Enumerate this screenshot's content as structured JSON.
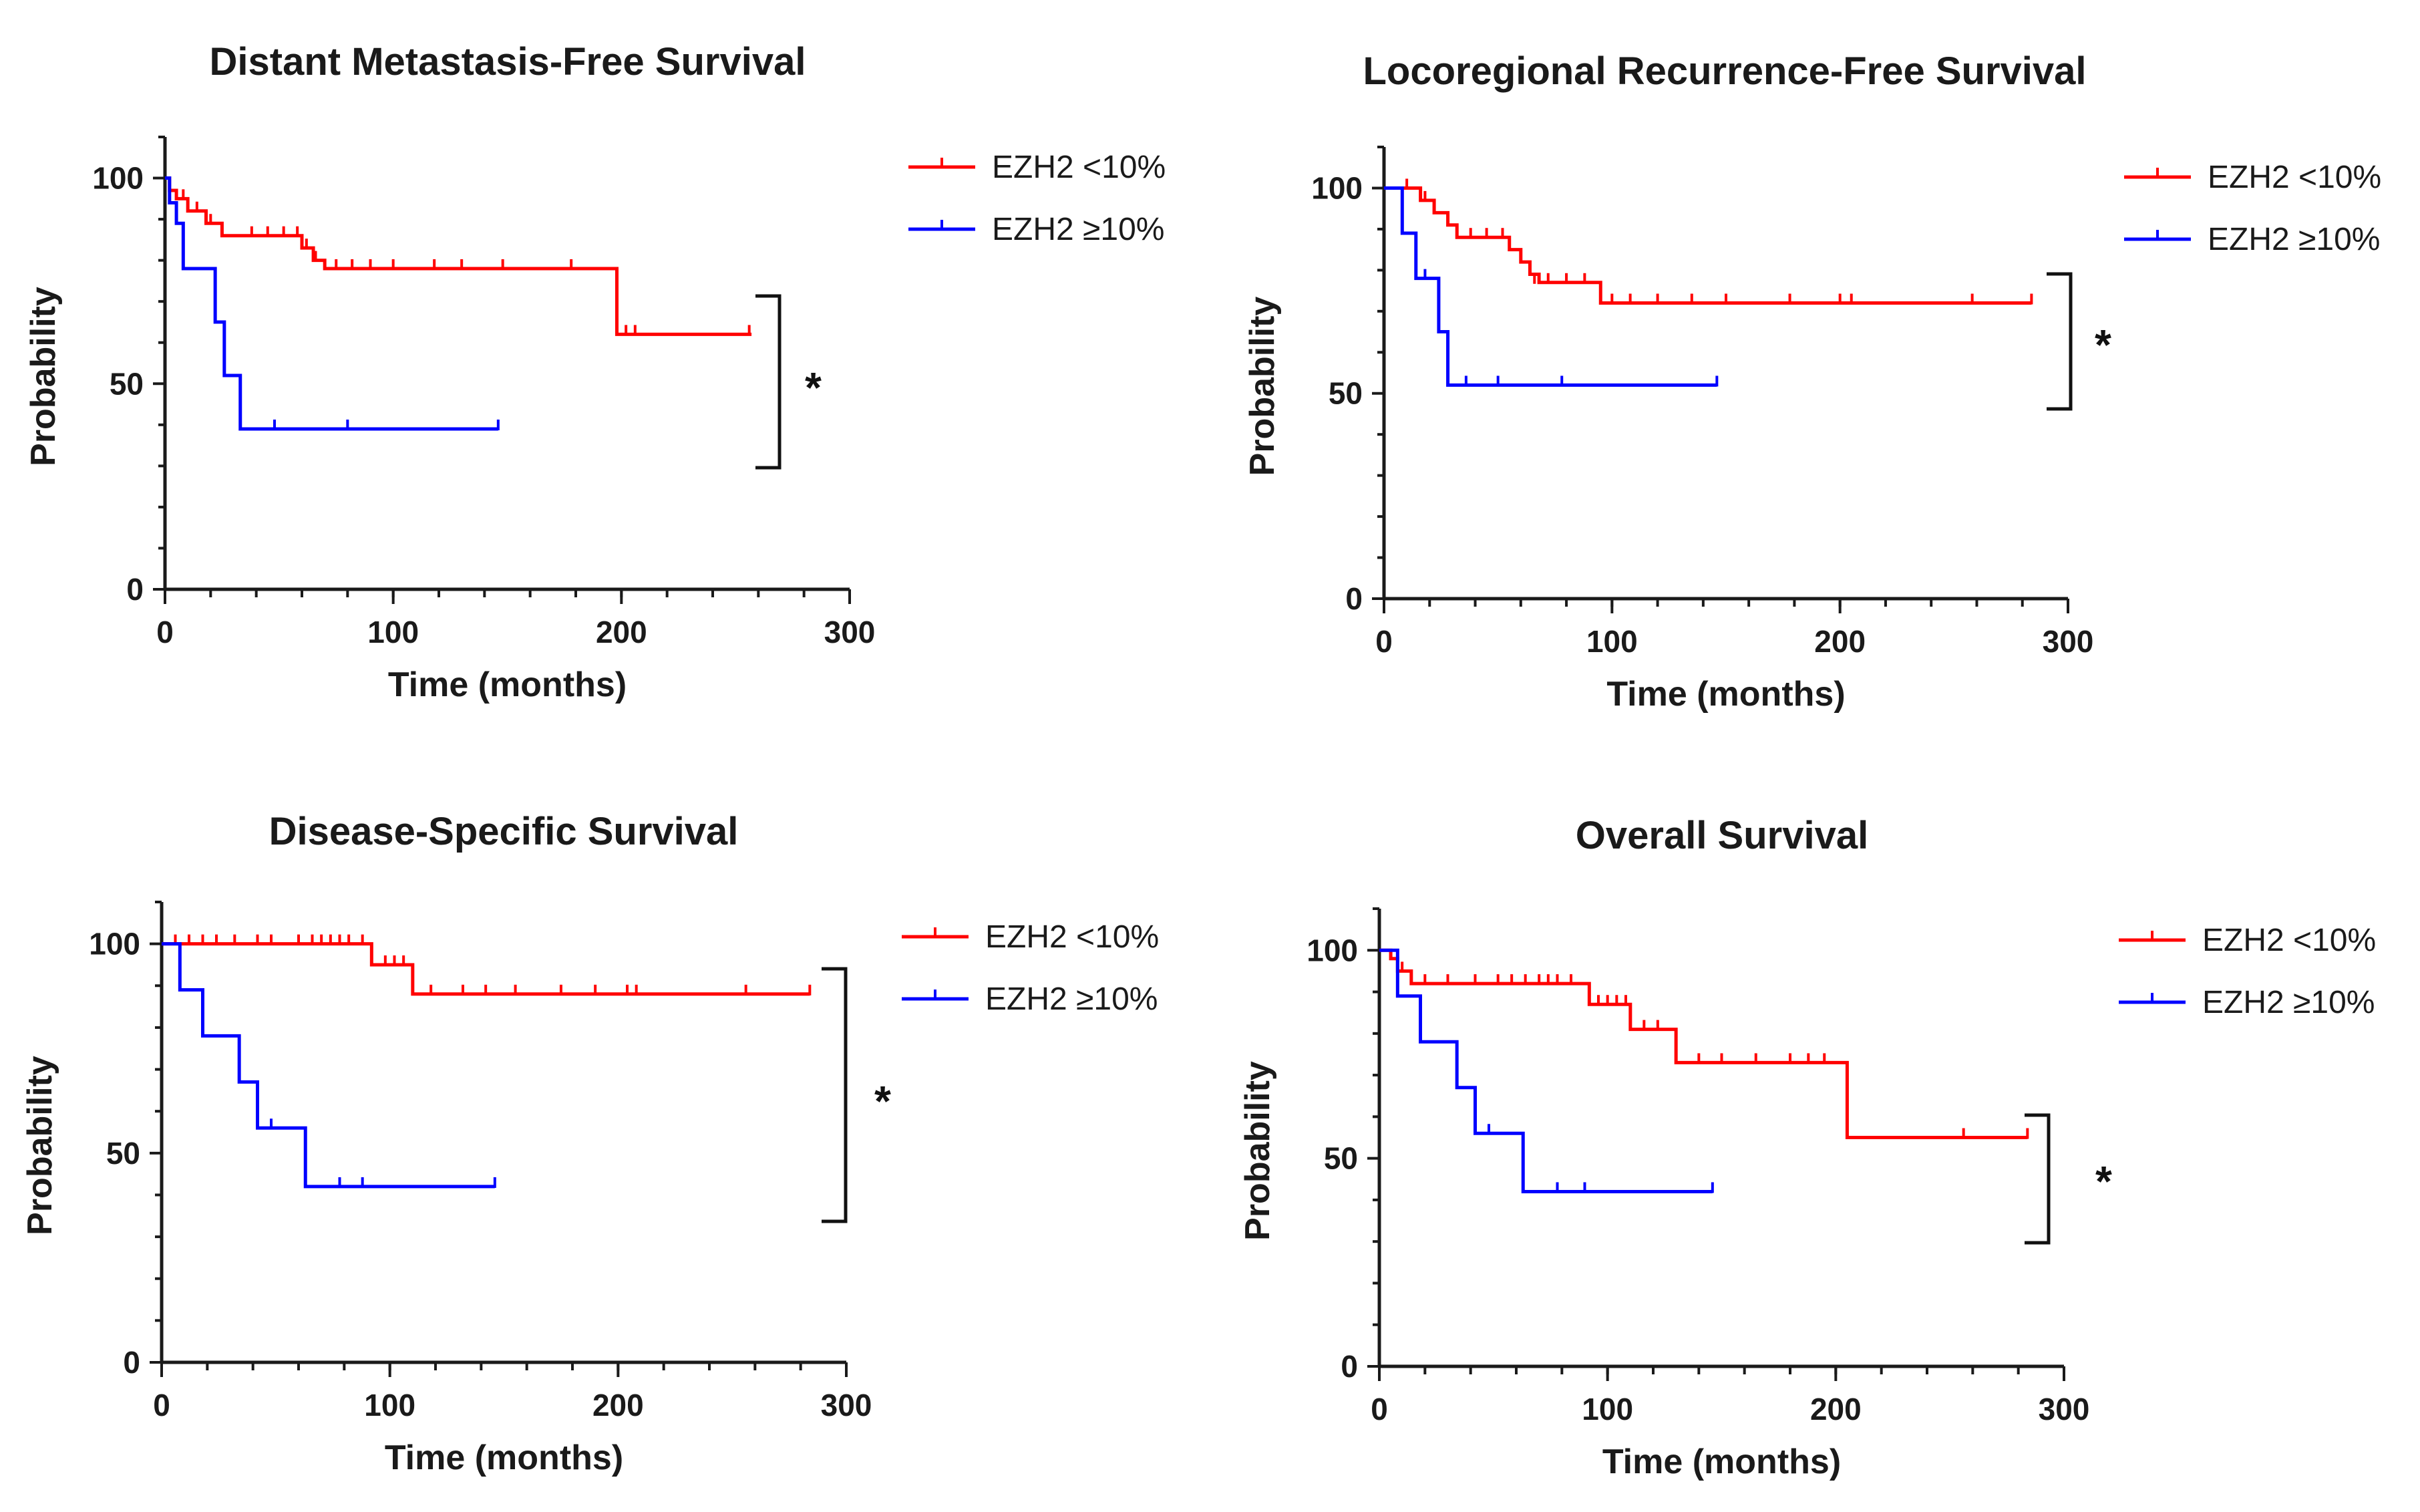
{
  "chart_data": [
    {
      "type": "line",
      "title": "Distant Metastasis-Free Survival",
      "xlabel": "Time (months)",
      "ylabel": "Probability",
      "xlim": [
        0,
        300
      ],
      "ylim": [
        0,
        110
      ],
      "xticks": [
        "0",
        "100",
        "200",
        "300"
      ],
      "yticks": [
        "0",
        "50",
        "100"
      ],
      "legend_position": "top-right",
      "significance": "*",
      "series": [
        {
          "name": "EZH2 <10%",
          "color": "#ff0000",
          "steps": [
            [
              0,
              100
            ],
            [
              2,
              97
            ],
            [
              5,
              95
            ],
            [
              10,
              92
            ],
            [
              18,
              89
            ],
            [
              25,
              86
            ],
            [
              60,
              83
            ],
            [
              65,
              80
            ],
            [
              70,
              78
            ],
            [
              198,
              62
            ],
            [
              257,
              62
            ]
          ],
          "censors": [
            [
              8,
              95
            ],
            [
              14,
              92
            ],
            [
              20,
              89
            ],
            [
              38,
              86
            ],
            [
              45,
              86
            ],
            [
              52,
              86
            ],
            [
              58,
              86
            ],
            [
              62,
              83
            ],
            [
              66,
              80
            ],
            [
              75,
              78
            ],
            [
              82,
              78
            ],
            [
              90,
              78
            ],
            [
              100,
              78
            ],
            [
              118,
              78
            ],
            [
              130,
              78
            ],
            [
              148,
              78
            ],
            [
              178,
              78
            ],
            [
              202,
              62
            ],
            [
              206,
              62
            ],
            [
              256,
              62
            ]
          ]
        },
        {
          "name": "EZH2 ≥10%",
          "color": "#0000ff",
          "steps": [
            [
              0,
              100
            ],
            [
              2,
              94
            ],
            [
              5,
              89
            ],
            [
              8,
              78
            ],
            [
              22,
              65
            ],
            [
              26,
              52
            ],
            [
              33,
              39
            ],
            [
              146,
              39
            ]
          ],
          "censors": [
            [
              48,
              39
            ],
            [
              80,
              39
            ],
            [
              146,
              39
            ]
          ]
        }
      ]
    },
    {
      "type": "line",
      "title": "Locoregional Recurrence-Free Survival",
      "xlabel": "Time (months)",
      "ylabel": "Probability",
      "xlim": [
        0,
        300
      ],
      "ylim": [
        0,
        110
      ],
      "xticks": [
        "0",
        "100",
        "200",
        "300"
      ],
      "yticks": [
        "0",
        "50",
        "100"
      ],
      "legend_position": "top-right",
      "significance": "*",
      "series": [
        {
          "name": "EZH2 <10%",
          "color": "#ff0000",
          "steps": [
            [
              0,
              100
            ],
            [
              16,
              97
            ],
            [
              22,
              94
            ],
            [
              28,
              91
            ],
            [
              32,
              88
            ],
            [
              55,
              85
            ],
            [
              60,
              82
            ],
            [
              64,
              79
            ],
            [
              68,
              77
            ],
            [
              95,
              72
            ],
            [
              284,
              72
            ]
          ],
          "censors": [
            [
              10,
              100
            ],
            [
              18,
              97
            ],
            [
              38,
              88
            ],
            [
              45,
              88
            ],
            [
              52,
              88
            ],
            [
              66,
              77
            ],
            [
              72,
              77
            ],
            [
              80,
              77
            ],
            [
              88,
              77
            ],
            [
              100,
              72
            ],
            [
              108,
              72
            ],
            [
              120,
              72
            ],
            [
              135,
              72
            ],
            [
              150,
              72
            ],
            [
              178,
              72
            ],
            [
              200,
              72
            ],
            [
              205,
              72
            ],
            [
              258,
              72
            ],
            [
              284,
              72
            ]
          ]
        },
        {
          "name": "EZH2 ≥10%",
          "color": "#0000ff",
          "steps": [
            [
              0,
              100
            ],
            [
              8,
              89
            ],
            [
              14,
              78
            ],
            [
              24,
              65
            ],
            [
              28,
              52
            ],
            [
              146,
              52
            ]
          ],
          "censors": [
            [
              18,
              78
            ],
            [
              36,
              52
            ],
            [
              50,
              52
            ],
            [
              78,
              52
            ],
            [
              146,
              52
            ]
          ]
        }
      ]
    },
    {
      "type": "line",
      "title": "Disease-Specific Survival",
      "xlabel": "Time (months)",
      "ylabel": "Probability",
      "xlim": [
        0,
        300
      ],
      "ylim": [
        0,
        110
      ],
      "xticks": [
        "0",
        "100",
        "200",
        "300"
      ],
      "yticks": [
        "0",
        "50",
        "100"
      ],
      "legend_position": "top-right",
      "significance": "*",
      "series": [
        {
          "name": "EZH2 <10%",
          "color": "#ff0000",
          "steps": [
            [
              0,
              100
            ],
            [
              92,
              95
            ],
            [
              110,
              88
            ],
            [
              284,
              88
            ]
          ],
          "censors": [
            [
              6,
              100
            ],
            [
              12,
              100
            ],
            [
              18,
              100
            ],
            [
              24,
              100
            ],
            [
              32,
              100
            ],
            [
              42,
              100
            ],
            [
              48,
              100
            ],
            [
              60,
              100
            ],
            [
              66,
              100
            ],
            [
              70,
              100
            ],
            [
              74,
              100
            ],
            [
              78,
              100
            ],
            [
              82,
              100
            ],
            [
              88,
              100
            ],
            [
              98,
              95
            ],
            [
              102,
              95
            ],
            [
              106,
              95
            ],
            [
              118,
              88
            ],
            [
              132,
              88
            ],
            [
              142,
              88
            ],
            [
              155,
              88
            ],
            [
              175,
              88
            ],
            [
              190,
              88
            ],
            [
              204,
              88
            ],
            [
              208,
              88
            ],
            [
              256,
              88
            ],
            [
              284,
              88
            ]
          ]
        },
        {
          "name": "EZH2 ≥10%",
          "color": "#0000ff",
          "steps": [
            [
              0,
              100
            ],
            [
              8,
              89
            ],
            [
              18,
              78
            ],
            [
              34,
              67
            ],
            [
              42,
              56
            ],
            [
              63,
              42
            ],
            [
              146,
              42
            ]
          ],
          "censors": [
            [
              48,
              56
            ],
            [
              78,
              42
            ],
            [
              88,
              42
            ],
            [
              146,
              42
            ]
          ]
        }
      ]
    },
    {
      "type": "line",
      "title": "Overall Survival",
      "xlabel": "Time (months)",
      "ylabel": "Probability",
      "xlim": [
        0,
        300
      ],
      "ylim": [
        0,
        110
      ],
      "xticks": [
        "0",
        "100",
        "200",
        "300"
      ],
      "yticks": [
        "0",
        "50",
        "100"
      ],
      "legend_position": "top-right",
      "significance": "*",
      "series": [
        {
          "name": "EZH2 <10%",
          "color": "#ff0000",
          "steps": [
            [
              0,
              100
            ],
            [
              5,
              98
            ],
            [
              8,
              95
            ],
            [
              14,
              92
            ],
            [
              92,
              87
            ],
            [
              110,
              81
            ],
            [
              130,
              73
            ],
            [
              205,
              55
            ],
            [
              284,
              55
            ]
          ],
          "censors": [
            [
              10,
              95
            ],
            [
              20,
              92
            ],
            [
              30,
              92
            ],
            [
              42,
              92
            ],
            [
              52,
              92
            ],
            [
              58,
              92
            ],
            [
              64,
              92
            ],
            [
              70,
              92
            ],
            [
              74,
              92
            ],
            [
              78,
              92
            ],
            [
              84,
              92
            ],
            [
              96,
              87
            ],
            [
              100,
              87
            ],
            [
              104,
              87
            ],
            [
              108,
              87
            ],
            [
              116,
              81
            ],
            [
              122,
              81
            ],
            [
              140,
              73
            ],
            [
              150,
              73
            ],
            [
              165,
              73
            ],
            [
              180,
              73
            ],
            [
              188,
              73
            ],
            [
              195,
              73
            ],
            [
              256,
              55
            ],
            [
              284,
              55
            ]
          ]
        },
        {
          "name": "EZH2 ≥10%",
          "color": "#0000ff",
          "steps": [
            [
              0,
              100
            ],
            [
              8,
              89
            ],
            [
              18,
              78
            ],
            [
              34,
              67
            ],
            [
              42,
              56
            ],
            [
              63,
              42
            ],
            [
              146,
              42
            ]
          ],
          "censors": [
            [
              48,
              56
            ],
            [
              78,
              42
            ],
            [
              90,
              42
            ],
            [
              146,
              42
            ]
          ]
        }
      ]
    }
  ]
}
